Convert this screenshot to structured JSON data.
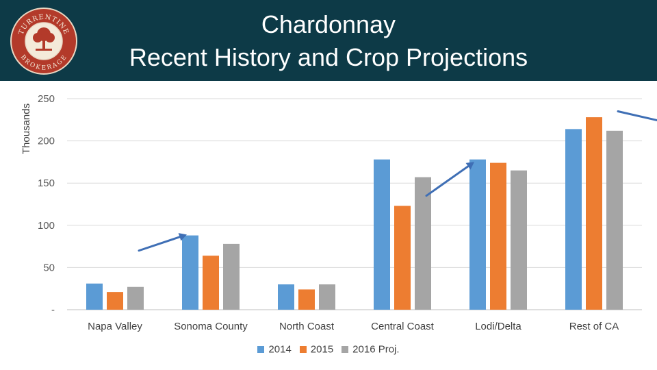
{
  "header": {
    "title_line1": "Chardonnay",
    "title_line2": "Recent History and Crop Projections",
    "logo_text_top": "TURRENTINE",
    "logo_text_bottom": "BROKERAGE",
    "background_color": "#0d3a47"
  },
  "chart_data": {
    "type": "bar",
    "title": "",
    "xlabel": "",
    "ylabel": "Thousands",
    "ylim": [
      0,
      250
    ],
    "yticks": [
      "-",
      "50",
      "100",
      "150",
      "200",
      "250"
    ],
    "grid": true,
    "legend_position": "bottom",
    "categories": [
      "Napa Valley",
      "Sonoma County",
      "North Coast",
      "Central Coast",
      "Lodi/Delta",
      "Rest of CA"
    ],
    "series": [
      {
        "name": "2014",
        "color": "#5b9bd5",
        "values": [
          31,
          88,
          30,
          178,
          178,
          214
        ]
      },
      {
        "name": "2015",
        "color": "#ed7d31",
        "values": [
          21,
          64,
          24,
          123,
          174,
          228
        ]
      },
      {
        "name": "2016 Proj.",
        "color": "#a5a5a5",
        "values": [
          27,
          78,
          30,
          157,
          165,
          212
        ]
      }
    ],
    "annotations": [
      {
        "type": "arrow",
        "category": "Sonoma County",
        "from": [
          0.75,
          70
        ],
        "to": [
          1.25,
          89
        ]
      },
      {
        "type": "arrow",
        "category": "Central Coast",
        "from": [
          3.75,
          135
        ],
        "to": [
          4.25,
          175
        ]
      },
      {
        "type": "arrow",
        "category": "Rest of CA",
        "from": [
          5.75,
          235
        ],
        "to": [
          6.25,
          222
        ]
      }
    ],
    "arrow_color": "#3f6fb5"
  }
}
